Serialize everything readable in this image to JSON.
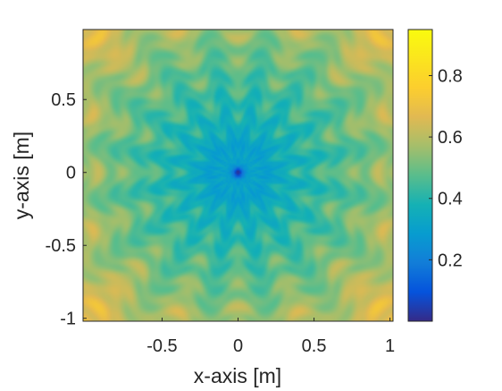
{
  "chart_data": {
    "type": "heatmap",
    "title": "",
    "xlabel": "x-axis [m]",
    "ylabel": "y-axis [m]",
    "xlim": [
      -1,
      1
    ],
    "ylim": [
      -1,
      1
    ],
    "xticks": [
      -0.5,
      0,
      0.5,
      1
    ],
    "xtick_labels": [
      "-0.5",
      "0",
      "0.5",
      "1"
    ],
    "yticks": [
      -1,
      -0.5,
      0,
      0.5
    ],
    "ytick_labels": [
      "-1",
      "-0.5",
      "0",
      "0.5"
    ],
    "colorbar": {
      "colormap": "parula",
      "range": [
        0,
        0.95
      ],
      "ticks": [
        0.2,
        0.4,
        0.6,
        0.8
      ],
      "tick_labels": [
        "0.2",
        "0.4",
        "0.6",
        "0.8"
      ]
    },
    "field_description_values": {
      "center_min": 0.02,
      "inner_ring": 0.3,
      "mid_region": 0.5,
      "edge": 0.65,
      "corners": 0.85
    },
    "grid": false,
    "legend": "none"
  }
}
